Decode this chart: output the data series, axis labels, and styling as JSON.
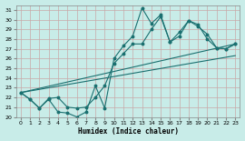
{
  "xlabel": "Humidex (Indice chaleur)",
  "bg_color": "#c8ece8",
  "grid_color": "#aad4d0",
  "line_color": "#1a7070",
  "xlim": [
    -0.5,
    23.5
  ],
  "ylim": [
    20,
    31.5
  ],
  "yticks": [
    20,
    21,
    22,
    23,
    24,
    25,
    26,
    27,
    28,
    29,
    30,
    31
  ],
  "xticks": [
    0,
    1,
    2,
    3,
    4,
    5,
    6,
    7,
    8,
    9,
    10,
    11,
    12,
    13,
    14,
    15,
    16,
    17,
    18,
    19,
    20,
    21,
    22,
    23
  ],
  "line1_x": [
    0,
    1,
    2,
    3,
    4,
    5,
    6,
    7,
    8,
    9,
    10,
    11,
    12,
    13,
    14,
    15,
    16,
    17,
    18,
    19,
    20,
    21,
    22,
    23
  ],
  "line1_y": [
    22.5,
    21.8,
    20.9,
    21.8,
    20.5,
    20.4,
    20.0,
    20.5,
    23.2,
    20.9,
    26.0,
    27.3,
    28.3,
    31.2,
    29.6,
    30.5,
    27.7,
    28.3,
    29.9,
    29.3,
    28.5,
    27.1,
    27.0,
    27.5
  ],
  "line2_x": [
    0,
    1,
    2,
    3,
    4,
    5,
    6,
    7,
    8,
    9,
    10,
    11,
    12,
    13,
    14,
    15,
    16,
    17,
    18,
    19,
    20,
    21,
    22,
    23
  ],
  "line2_y": [
    22.5,
    21.8,
    20.9,
    21.9,
    22.0,
    21.0,
    20.9,
    21.0,
    22.0,
    23.2,
    25.5,
    26.5,
    27.5,
    27.5,
    29.0,
    30.3,
    27.7,
    28.7,
    29.9,
    29.5,
    28.0,
    27.1,
    27.0,
    27.5
  ],
  "line3_x": [
    0,
    23
  ],
  "line3_y": [
    22.5,
    27.5
  ],
  "line4_x": [
    0,
    23
  ],
  "line4_y": [
    22.5,
    26.3
  ]
}
